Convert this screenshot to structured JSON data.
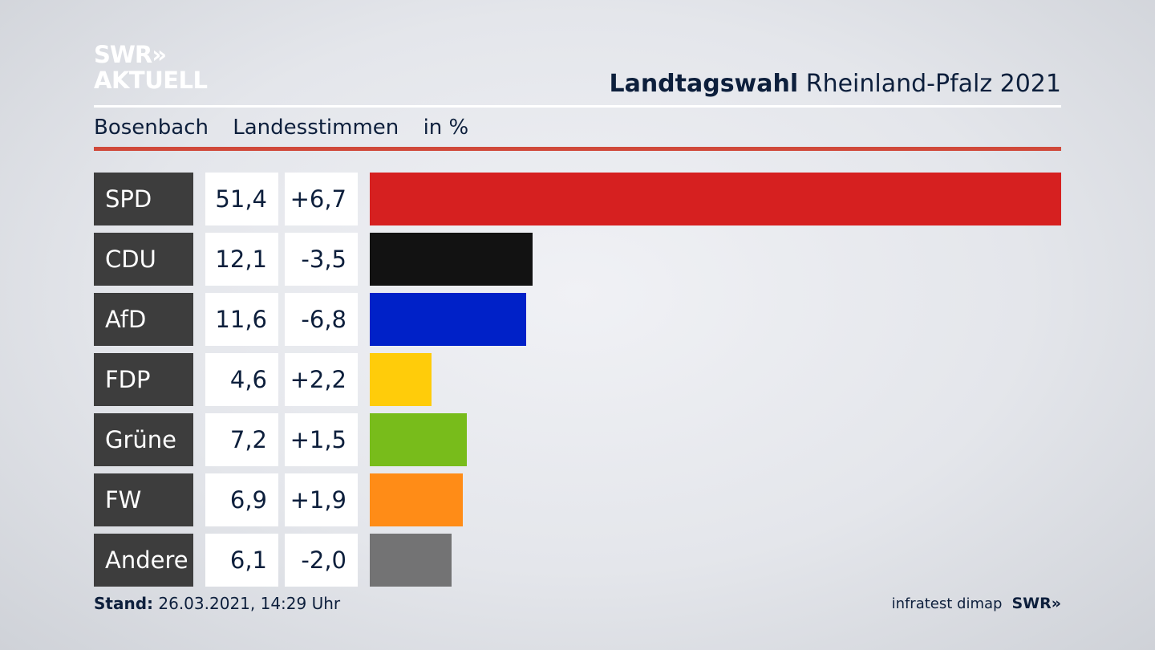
{
  "logo": {
    "line1": "SWR»",
    "line2": "AKTUELL"
  },
  "header": {
    "title_bold": "Landtagswahl",
    "title_rest": "Rheinland-Pfalz 2021"
  },
  "subheader": {
    "place": "Bosenbach",
    "vote_type": "Landesstimmen",
    "unit": "in %"
  },
  "footer": {
    "stand_label": "Stand:",
    "stand_value": "26.03.2021, 14:29 Uhr",
    "source": "infratest dimap",
    "brand": "SWR»"
  },
  "chart_data": {
    "type": "bar",
    "orientation": "horizontal",
    "categories": [
      "SPD",
      "CDU",
      "AfD",
      "FDP",
      "Grüne",
      "FW",
      "Andere"
    ],
    "values": [
      51.4,
      12.1,
      11.6,
      4.6,
      7.2,
      6.9,
      6.1
    ],
    "value_labels": [
      "51,4",
      "12,1",
      "11,6",
      "4,6",
      "7,2",
      "6,9",
      "6,1"
    ],
    "change_labels": [
      "+6,7",
      "-3,5",
      "-6,8",
      "+2,2",
      "+1,5",
      "+1,9",
      "-2,0"
    ],
    "changes": [
      6.7,
      -3.5,
      -6.8,
      2.2,
      1.5,
      1.9,
      -2.0
    ],
    "colors": [
      "#d62020",
      "#121212",
      "#0021c8",
      "#ffcc0a",
      "#78bc1b",
      "#ff8c17",
      "#737374"
    ],
    "xlim": [
      0,
      51.4
    ],
    "grid": false,
    "legend": "none"
  }
}
